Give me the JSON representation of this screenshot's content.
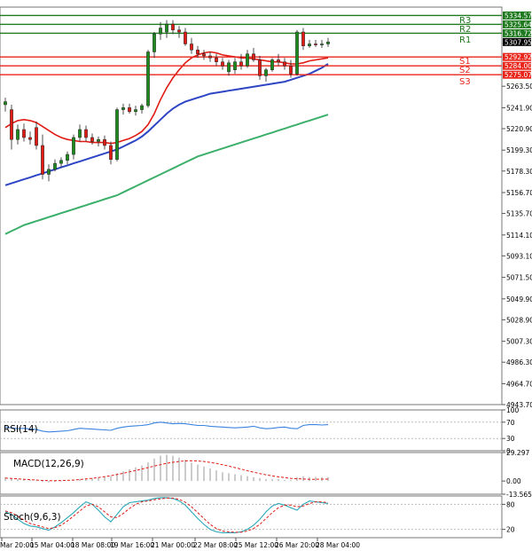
{
  "chart_data": [
    {
      "type": "candlestick",
      "ylim": [
        4943.7,
        5343.0
      ],
      "y_ticks": [
        "5263.50",
        "5241.90",
        "5220.90",
        "5199.30",
        "5178.30",
        "5156.70",
        "5135.70",
        "5114.10",
        "5093.10",
        "5071.50",
        "5049.90",
        "5028.90",
        "5007.30",
        "4986.30",
        "4964.70",
        "4943.70"
      ],
      "x_ticks": [
        "Mar 20:00",
        "15 Mar 04:00",
        "18 Mar 08:00",
        "19 Mar 16:00",
        "21 Mar 00:00",
        "22 Mar 08:00",
        "25 Mar 12:00",
        "26 Mar 20:00",
        "28 Mar 04:00"
      ],
      "last_price": "5307.95",
      "levels": [
        {
          "name": "R3",
          "value": 5334.57,
          "label": "5334.57",
          "color": "#1f7a1f"
        },
        {
          "name": "R2",
          "value": 5325.64,
          "label": "5325.64",
          "color": "#1f7a1f"
        },
        {
          "name": "R1",
          "value": 5316.72,
          "label": "5316.72",
          "color": "#1f7a1f"
        },
        {
          "name": "S1",
          "value": 5292.92,
          "label": "5292.92",
          "color": "#e8261c"
        },
        {
          "name": "S2",
          "value": 5284.0,
          "label": "5284.00",
          "color": "#e8261c"
        },
        {
          "name": "S3",
          "value": 5275.07,
          "label": "5275.07",
          "color": "#e8261c"
        }
      ],
      "candles": [
        {
          "o": 5245,
          "h": 5252,
          "l": 5238,
          "c": 5248
        },
        {
          "o": 5240,
          "h": 5245,
          "l": 5200,
          "c": 5210
        },
        {
          "o": 5210,
          "h": 5225,
          "l": 5205,
          "c": 5220
        },
        {
          "o": 5220,
          "h": 5226,
          "l": 5208,
          "c": 5212
        },
        {
          "o": 5212,
          "h": 5218,
          "l": 5205,
          "c": 5210
        },
        {
          "o": 5222,
          "h": 5228,
          "l": 5200,
          "c": 5204
        },
        {
          "o": 5204,
          "h": 5215,
          "l": 5170,
          "c": 5175
        },
        {
          "o": 5175,
          "h": 5185,
          "l": 5168,
          "c": 5180
        },
        {
          "o": 5180,
          "h": 5190,
          "l": 5178,
          "c": 5186
        },
        {
          "o": 5186,
          "h": 5192,
          "l": 5182,
          "c": 5189
        },
        {
          "o": 5189,
          "h": 5198,
          "l": 5185,
          "c": 5195
        },
        {
          "o": 5195,
          "h": 5215,
          "l": 5190,
          "c": 5212
        },
        {
          "o": 5212,
          "h": 5225,
          "l": 5208,
          "c": 5220
        },
        {
          "o": 5220,
          "h": 5224,
          "l": 5208,
          "c": 5212
        },
        {
          "o": 5212,
          "h": 5216,
          "l": 5205,
          "c": 5208
        },
        {
          "o": 5208,
          "h": 5213,
          "l": 5203,
          "c": 5210
        },
        {
          "o": 5210,
          "h": 5214,
          "l": 5200,
          "c": 5204
        },
        {
          "o": 5204,
          "h": 5208,
          "l": 5185,
          "c": 5190
        },
        {
          "o": 5190,
          "h": 5242,
          "l": 5188,
          "c": 5240
        },
        {
          "o": 5240,
          "h": 5246,
          "l": 5235,
          "c": 5242
        },
        {
          "o": 5242,
          "h": 5246,
          "l": 5236,
          "c": 5238
        },
        {
          "o": 5238,
          "h": 5244,
          "l": 5234,
          "c": 5240
        },
        {
          "o": 5240,
          "h": 5246,
          "l": 5236,
          "c": 5244
        },
        {
          "o": 5244,
          "h": 5300,
          "l": 5242,
          "c": 5298
        },
        {
          "o": 5298,
          "h": 5318,
          "l": 5292,
          "c": 5316
        },
        {
          "o": 5316,
          "h": 5328,
          "l": 5310,
          "c": 5322
        },
        {
          "o": 5318,
          "h": 5330,
          "l": 5312,
          "c": 5326
        },
        {
          "o": 5326,
          "h": 5330,
          "l": 5316,
          "c": 5320
        },
        {
          "o": 5320,
          "h": 5324,
          "l": 5312,
          "c": 5318
        },
        {
          "o": 5318,
          "h": 5322,
          "l": 5304,
          "c": 5306
        },
        {
          "o": 5306,
          "h": 5312,
          "l": 5296,
          "c": 5300
        },
        {
          "o": 5300,
          "h": 5304,
          "l": 5292,
          "c": 5296
        },
        {
          "o": 5296,
          "h": 5300,
          "l": 5290,
          "c": 5294
        },
        {
          "o": 5294,
          "h": 5298,
          "l": 5288,
          "c": 5292
        },
        {
          "o": 5292,
          "h": 5296,
          "l": 5284,
          "c": 5288
        },
        {
          "o": 5288,
          "h": 5292,
          "l": 5280,
          "c": 5284
        },
        {
          "o": 5278,
          "h": 5290,
          "l": 5274,
          "c": 5287
        },
        {
          "o": 5280,
          "h": 5292,
          "l": 5276,
          "c": 5288
        },
        {
          "o": 5288,
          "h": 5296,
          "l": 5280,
          "c": 5284
        },
        {
          "o": 5284,
          "h": 5300,
          "l": 5282,
          "c": 5296
        },
        {
          "o": 5296,
          "h": 5302,
          "l": 5288,
          "c": 5290
        },
        {
          "o": 5290,
          "h": 5294,
          "l": 5270,
          "c": 5274
        },
        {
          "o": 5274,
          "h": 5282,
          "l": 5268,
          "c": 5280
        },
        {
          "o": 5280,
          "h": 5292,
          "l": 5278,
          "c": 5290
        },
        {
          "o": 5290,
          "h": 5296,
          "l": 5284,
          "c": 5288
        },
        {
          "o": 5288,
          "h": 5292,
          "l": 5280,
          "c": 5284
        },
        {
          "o": 5284,
          "h": 5290,
          "l": 5272,
          "c": 5276
        },
        {
          "o": 5276,
          "h": 5320,
          "l": 5274,
          "c": 5318
        },
        {
          "o": 5318,
          "h": 5322,
          "l": 5300,
          "c": 5304
        },
        {
          "o": 5304,
          "h": 5310,
          "l": 5302,
          "c": 5306
        },
        {
          "o": 5306,
          "h": 5310,
          "l": 5303,
          "c": 5305
        },
        {
          "o": 5305,
          "h": 5310,
          "l": 5302,
          "c": 5306
        },
        {
          "o": 5306,
          "h": 5312,
          "l": 5303,
          "c": 5308
        }
      ],
      "ma_red": [
        5222,
        5226,
        5229,
        5230,
        5229,
        5227,
        5223,
        5219,
        5215,
        5212,
        5210,
        5209,
        5208,
        5208,
        5207,
        5207,
        5207,
        5206,
        5207,
        5209,
        5211,
        5214,
        5218,
        5225,
        5236,
        5250,
        5262,
        5272,
        5280,
        5287,
        5292,
        5295,
        5297,
        5298,
        5297,
        5295,
        5294,
        5293,
        5292,
        5292,
        5291,
        5290,
        5289,
        5288,
        5288,
        5287,
        5286,
        5286,
        5287,
        5289,
        5290,
        5291,
        5292
      ],
      "ma_blue": [
        5164,
        5166,
        5168,
        5170,
        5172,
        5174,
        5176,
        5178,
        5180,
        5182,
        5184,
        5186,
        5188,
        5190,
        5192,
        5194,
        5196,
        5198,
        5200,
        5203,
        5206,
        5209,
        5213,
        5218,
        5224,
        5230,
        5236,
        5241,
        5245,
        5248,
        5250,
        5252,
        5254,
        5256,
        5257,
        5258,
        5259,
        5260,
        5261,
        5262,
        5263,
        5264,
        5265,
        5266,
        5267,
        5268,
        5270,
        5272,
        5274,
        5276,
        5279,
        5282,
        5286
      ],
      "ma_green": [
        5115,
        5118,
        5121,
        5124,
        5126,
        5128,
        5130,
        5132,
        5134,
        5136,
        5138,
        5140,
        5142,
        5144,
        5146,
        5148,
        5150,
        5152,
        5154,
        5157,
        5160,
        5163,
        5166,
        5169,
        5172,
        5175,
        5178,
        5181,
        5184,
        5187,
        5190,
        5193,
        5195,
        5197,
        5199,
        5201,
        5203,
        5205,
        5207,
        5209,
        5211,
        5213,
        5215,
        5217,
        5219,
        5221,
        5223,
        5225,
        5227,
        5229,
        5231,
        5233,
        5235
      ]
    },
    {
      "type": "line",
      "name": "RSI(14)",
      "ylim": [
        0,
        100
      ],
      "y_ticks": [
        "100",
        "70",
        "30",
        "0"
      ],
      "series": [
        {
          "values": [
            58,
            56,
            54,
            55,
            53,
            52,
            48,
            46,
            47,
            48,
            49,
            52,
            55,
            54,
            53,
            52,
            51,
            50,
            55,
            58,
            60,
            61,
            62,
            64,
            68,
            70,
            68,
            66,
            67,
            66,
            64,
            62,
            62,
            60,
            59,
            58,
            57,
            56,
            57,
            58,
            60,
            56,
            54,
            55,
            57,
            58,
            55,
            54,
            62,
            64,
            64,
            63,
            64
          ]
        }
      ]
    },
    {
      "type": "line",
      "name": "MACD(12,26,9)",
      "ylim": [
        -13.565,
        29.297
      ],
      "y_ticks": [
        "29.297",
        "0.00",
        "-13.565"
      ],
      "series": [
        {
          "values": [
            3,
            2.6,
            2.2,
            1.8,
            1.4,
            1.0,
            0.6,
            0.4,
            0.4,
            0.5,
            0.7,
            1.0,
            1.5,
            2.1,
            2.8,
            3.6,
            4.5,
            5.5,
            6.7,
            8.0,
            9.4,
            10.8,
            12.3,
            13.8,
            15.3,
            16.8,
            18.2,
            19.3,
            20.1,
            20.6,
            20.8,
            20.6,
            20.1,
            19.2,
            18.1,
            16.8,
            15.3,
            13.8,
            12.2,
            10.6,
            9.1,
            7.7,
            6.4,
            5.3,
            4.3,
            3.5,
            2.8,
            2.3,
            2.0,
            1.8,
            1.8,
            1.9,
            2.0
          ]
        }
      ],
      "histogram": [
        4,
        3,
        2,
        1.5,
        1,
        0.5,
        -1,
        -1.5,
        -1,
        -0.5,
        0,
        1,
        2,
        2.5,
        3,
        3.5,
        4,
        5,
        8,
        10,
        12,
        14,
        16,
        19,
        23,
        26,
        27,
        26,
        24,
        22,
        19,
        17,
        15,
        13,
        11,
        9,
        8,
        7,
        6,
        5,
        4,
        3,
        2,
        2,
        2,
        1,
        1,
        4,
        5,
        4,
        4,
        4,
        4
      ]
    },
    {
      "type": "line",
      "name": "Stoch(9,6,3)",
      "ylim": [
        0,
        100
      ],
      "y_ticks": [
        "80",
        "20"
      ],
      "series": [
        {
          "values": [
            62,
            56,
            44,
            34,
            28,
            26,
            22,
            18,
            26,
            36,
            48,
            60,
            74,
            86,
            80,
            66,
            50,
            38,
            56,
            74,
            84,
            86,
            88,
            90,
            94,
            96,
            96,
            94,
            88,
            78,
            62,
            46,
            32,
            20,
            14,
            12,
            12,
            12,
            14,
            20,
            30,
            44,
            62,
            76,
            82,
            78,
            72,
            66,
            80,
            88,
            86,
            84,
            82
          ]
        },
        {
          "values": [
            64,
            60,
            52,
            42,
            34,
            30,
            26,
            22,
            24,
            30,
            40,
            52,
            64,
            76,
            80,
            74,
            62,
            50,
            48,
            58,
            70,
            80,
            86,
            88,
            91,
            93,
            95,
            95,
            92,
            85,
            74,
            60,
            46,
            32,
            22,
            16,
            14,
            13,
            13,
            16,
            22,
            32,
            46,
            60,
            72,
            78,
            78,
            74,
            76,
            82,
            86,
            86,
            84
          ]
        }
      ]
    }
  ]
}
